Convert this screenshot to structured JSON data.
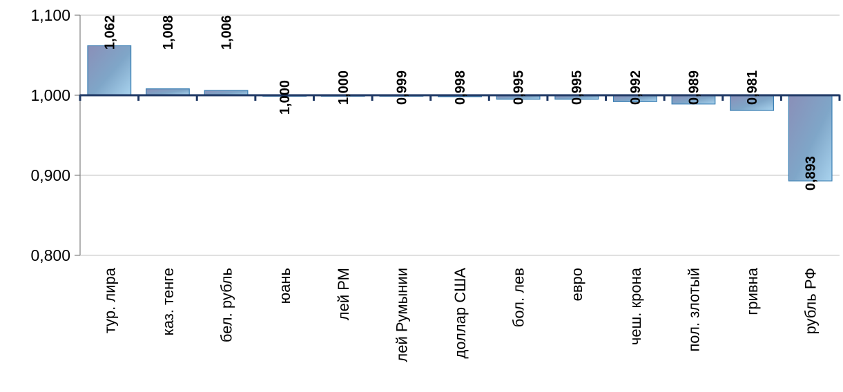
{
  "chart_data": {
    "type": "bar",
    "title": "",
    "xlabel": "",
    "ylabel": "",
    "baseline": 1.0,
    "ylim": [
      0.8,
      1.1
    ],
    "yticks": [
      {
        "value": 0.8,
        "label": "0,800"
      },
      {
        "value": 0.9,
        "label": "0,900"
      },
      {
        "value": 1.0,
        "label": "1,000"
      },
      {
        "value": 1.1,
        "label": "1,100"
      }
    ],
    "grid": true,
    "legend": "none",
    "categories": [
      "тур. лира",
      "каз. тенге",
      "бел. рубль",
      "юань",
      "лей РМ",
      "лей Румынии",
      "доллар США",
      "бол. лев",
      "евро",
      "чеш. крона",
      "пол. злотый",
      "гривна",
      "рубль РФ"
    ],
    "values": [
      1.062,
      1.008,
      1.006,
      1.0,
      1.0,
      0.999,
      0.998,
      0.995,
      0.995,
      0.992,
      0.989,
      0.981,
      0.893
    ],
    "value_labels": [
      "1,062",
      "1,008",
      "1,006",
      "1,000",
      "1,000",
      "0,999",
      "0,998",
      "0,995",
      "0,995",
      "0,992",
      "0,989",
      "0,981",
      "0,893"
    ],
    "colors": {
      "bar_light": "#a9d3ee",
      "bar_mid": "#7fa6c8",
      "bar_dark": "#8a8fb8",
      "bar_border": "#3a7fb3",
      "axis": "#1f3864",
      "grid": "#c0c0c0"
    }
  }
}
